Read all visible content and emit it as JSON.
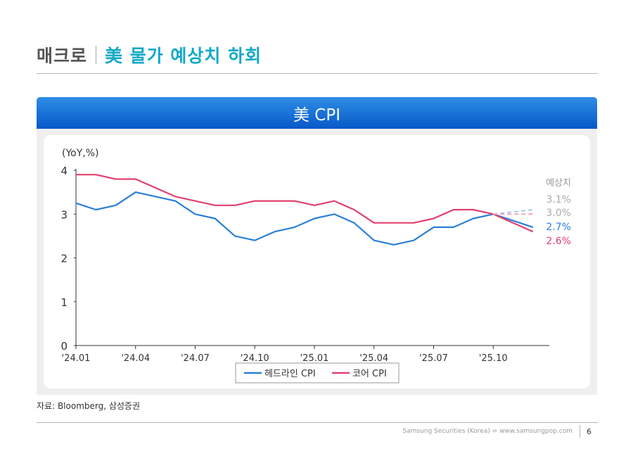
{
  "header": {
    "section": "매크로",
    "title": "美 물가 예상치 하회"
  },
  "panel_title": "美 CPI",
  "source": "자료: Bloomberg, 삼성증권",
  "footer": {
    "company": "Samsung Securities (Korea) = www.samsungpop.com",
    "page": "6"
  },
  "colors": {
    "headline": "#2a7fd9",
    "core": "#e0416f",
    "forecast_headline": "#a9c9ee",
    "forecast_core": "#f0a7bd"
  },
  "chart_data": {
    "type": "line",
    "unit_label": "(YoY,%)",
    "ylim": [
      0,
      4
    ],
    "yticks": [
      "0",
      "1",
      "2",
      "3",
      "4"
    ],
    "x_tick_labels": [
      "'24.01",
      "'24.04",
      "'24.07",
      "'24.10",
      "'25.01",
      "'25.04",
      "'25.07",
      "'25.10"
    ],
    "x_tick_index": [
      0,
      3,
      6,
      9,
      12,
      15,
      18,
      21
    ],
    "series": [
      {
        "name": "헤드라인 CPI",
        "values": [
          3.25,
          3.1,
          3.2,
          3.5,
          3.4,
          3.3,
          3.0,
          2.9,
          2.5,
          2.4,
          2.6,
          2.7,
          2.9,
          3.0,
          2.8,
          2.4,
          2.3,
          2.4,
          2.7,
          2.7,
          2.9,
          3.0,
          2.85,
          2.7
        ]
      },
      {
        "name": "코어 CPI",
        "values": [
          3.9,
          3.9,
          3.8,
          3.8,
          3.6,
          3.4,
          3.3,
          3.2,
          3.2,
          3.3,
          3.3,
          3.3,
          3.2,
          3.3,
          3.1,
          2.8,
          2.8,
          2.8,
          2.9,
          3.1,
          3.1,
          3.0,
          2.8,
          2.6
        ]
      }
    ],
    "forecast_label": "예상치",
    "forecast": {
      "start_index": 21,
      "end_index": 23,
      "headline": 3.1,
      "core": 3.0,
      "headline_label": "3.1%",
      "core_label": "3.0%"
    },
    "actual_labels": {
      "headline": "2.7%",
      "core": "2.6%"
    },
    "legend": [
      "헤드라인 CPI",
      "코어 CPI"
    ]
  }
}
